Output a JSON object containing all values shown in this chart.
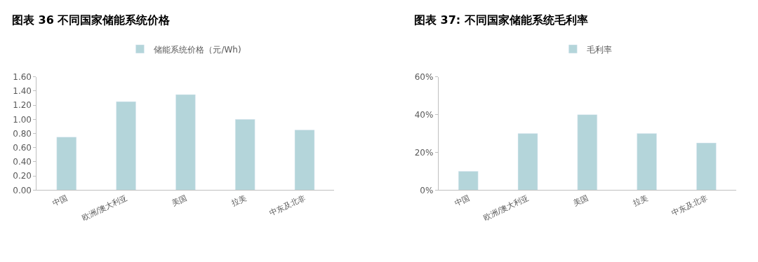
{
  "chart_data": [
    {
      "type": "bar",
      "title": "图表 36 不同国家储能系统价格",
      "categories": [
        "中国",
        "欧洲/澳大利亚",
        "美国",
        "拉美",
        "中东及北非"
      ],
      "series": [
        {
          "name": "储能系统价格（元/Wh)",
          "color": "#b4d5da",
          "values": [
            0.75,
            1.25,
            1.35,
            1.0,
            0.85
          ]
        }
      ],
      "ylim": [
        0,
        1.6
      ],
      "yticks": [
        {
          "value": 0,
          "label": "0.00"
        },
        {
          "value": 0.2,
          "label": "0.20"
        },
        {
          "value": 0.4,
          "label": "0.40"
        },
        {
          "value": 0.6,
          "label": "0.60"
        },
        {
          "value": 0.8,
          "label": "0.80"
        },
        {
          "value": 1.0,
          "label": "1.00"
        },
        {
          "value": 1.2,
          "label": "1.20"
        },
        {
          "value": 1.4,
          "label": "1.40"
        },
        {
          "value": 1.6,
          "label": "1.60"
        }
      ],
      "legend": "top"
    },
    {
      "type": "bar",
      "title": "图表 37: 不同国家储能系统毛利率",
      "categories": [
        "中国",
        "欧洲/澳大利亚",
        "美国",
        "拉美",
        "中东及北非"
      ],
      "series": [
        {
          "name": "毛利率",
          "color": "#b4d5da",
          "values": [
            10,
            30,
            40,
            30,
            25
          ]
        }
      ],
      "ylim": [
        0,
        60
      ],
      "yticks": [
        {
          "value": 0,
          "label": "0%"
        },
        {
          "value": 20,
          "label": "20%"
        },
        {
          "value": 40,
          "label": "40%"
        },
        {
          "value": 60,
          "label": "60%"
        }
      ],
      "legend": "top"
    }
  ]
}
